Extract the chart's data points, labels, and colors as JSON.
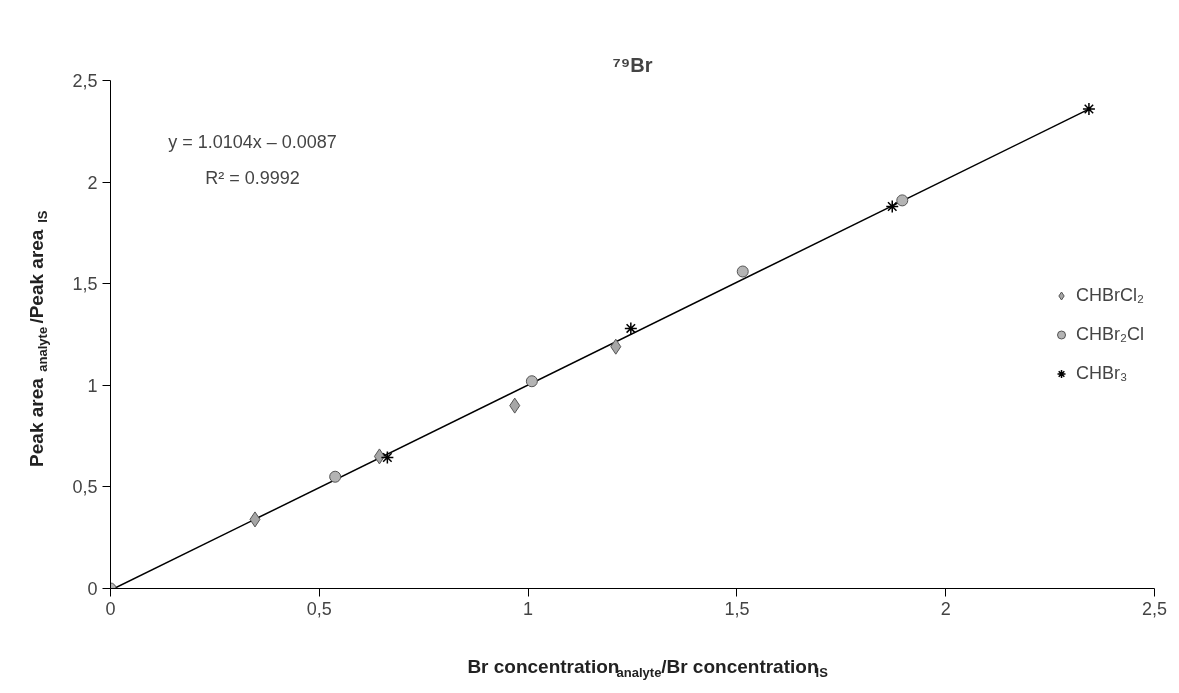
{
  "chart_data": {
    "type": "scatter",
    "title": "⁷⁹Br",
    "xlabel": "Br concentration$_{analyte}$/Br concentration$_{IS}$",
    "ylabel": "Peak area$_{analyte}$/Peak area$_{IS}$",
    "annotations": [
      "y = 1.0104x – 0.0087",
      "R² = 0.9992"
    ],
    "xlim": [
      0,
      2.5
    ],
    "ylim": [
      0,
      2.5
    ],
    "xticks": [
      0,
      {
        "value": 0.5,
        "label": "0,5"
      },
      1,
      {
        "value": 1.5,
        "label": "1,5"
      },
      2,
      {
        "value": 2.5,
        "label": "2,5"
      }
    ],
    "yticks": [
      0,
      {
        "value": 0.5,
        "label": "0,5"
      },
      1,
      {
        "value": 1.5,
        "label": "1,5"
      },
      2,
      {
        "value": 2.5,
        "label": "2,5"
      }
    ],
    "grid": false,
    "legend": "right",
    "series": [
      {
        "name": "CHBrCl₂",
        "color": "#a6a6a6",
        "marker": "diamond",
        "x": [
          0.346,
          0.644,
          0.968,
          1.21
        ],
        "values": [
          0.34,
          0.65,
          0.9,
          1.19
        ]
      },
      {
        "name": "CHBr₂Cl",
        "color": "#b4b4b4",
        "marker": "circle",
        "x": [
          0,
          0.538,
          1.009,
          1.514,
          1.896
        ],
        "values": [
          0,
          0.55,
          1.02,
          1.56,
          1.91
        ]
      },
      {
        "name": "CHBr₃",
        "color": "#000000",
        "marker": "cross",
        "x": [
          0.663,
          1.246,
          1.872,
          2.343
        ],
        "values": [
          0.645,
          1.28,
          1.88,
          2.36
        ]
      },
      {
        "type": "line",
        "color": "#000000",
        "marker": "none",
        "line_style": "solid",
        "x": [
          0.0086,
          2.343
        ],
        "values": [
          0,
          2.359
        ]
      }
    ]
  }
}
